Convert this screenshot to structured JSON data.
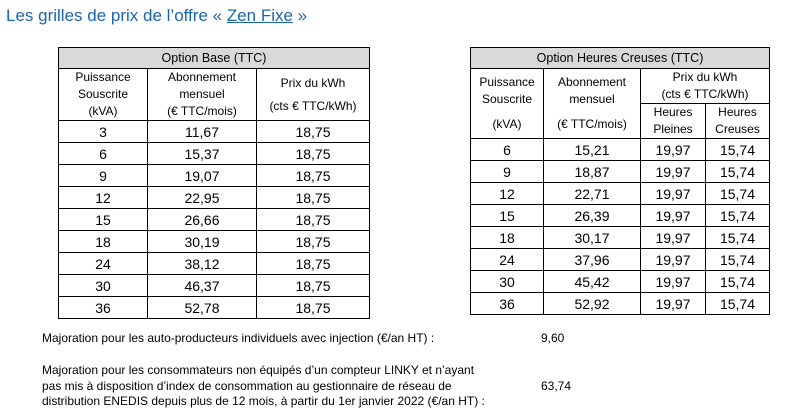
{
  "title": {
    "prefix": "Les grilles de prix de l’offre « ",
    "link": "Zen Fixe",
    "suffix": " »"
  },
  "base": {
    "caption": "Option Base (TTC)",
    "h1": [
      "Puissance",
      "Souscrite",
      "(kVA)"
    ],
    "h2": [
      "Abonnement",
      "mensuel",
      "(€ TTC/mois)"
    ],
    "h3": [
      "Prix du kWh",
      "(cts € TTC/kWh)"
    ],
    "rows": [
      [
        "3",
        "11,67",
        "18,75"
      ],
      [
        "6",
        "15,37",
        "18,75"
      ],
      [
        "9",
        "19,07",
        "18,75"
      ],
      [
        "12",
        "22,95",
        "18,75"
      ],
      [
        "15",
        "26,66",
        "18,75"
      ],
      [
        "18",
        "30,19",
        "18,75"
      ],
      [
        "24",
        "38,12",
        "18,75"
      ],
      [
        "30",
        "46,37",
        "18,75"
      ],
      [
        "36",
        "52,78",
        "18,75"
      ]
    ]
  },
  "hc": {
    "caption": "Option Heures Creuses (TTC)",
    "h1": [
      "Puissance",
      "Souscrite",
      "(kVA)"
    ],
    "h2": [
      "Abonnement",
      "mensuel",
      "(€ TTC/mois)"
    ],
    "h3": [
      "Prix du kWh",
      "(cts € TTC/kWh)"
    ],
    "h4": [
      "Heures",
      "Pleines"
    ],
    "h5": [
      "Heures",
      "Creuses"
    ],
    "rows": [
      [
        "6",
        "15,21",
        "19,97",
        "15,74"
      ],
      [
        "9",
        "18,87",
        "19,97",
        "15,74"
      ],
      [
        "12",
        "22,71",
        "19,97",
        "15,74"
      ],
      [
        "15",
        "26,39",
        "19,97",
        "15,74"
      ],
      [
        "18",
        "30,17",
        "19,97",
        "15,74"
      ],
      [
        "24",
        "37,96",
        "19,97",
        "15,74"
      ],
      [
        "30",
        "45,42",
        "19,97",
        "15,74"
      ],
      [
        "36",
        "52,92",
        "19,97",
        "15,74"
      ]
    ]
  },
  "notes": [
    {
      "lines": [
        "Majoration pour les auto-producteurs individuels avec injection (€/an HT) :"
      ],
      "value": "9,60"
    },
    {
      "lines": [
        "Majoration pour les consommateurs non équipés d’un compteur LINKY et n’ayant",
        "pas mis à disposition d’index de consommation au gestionnaire de réseau de",
        "distribution ENEDIS depuis plus de 12 mois, à partir du 1er janvier 2022 (€/an HT) :"
      ],
      "value": "63,74"
    }
  ]
}
